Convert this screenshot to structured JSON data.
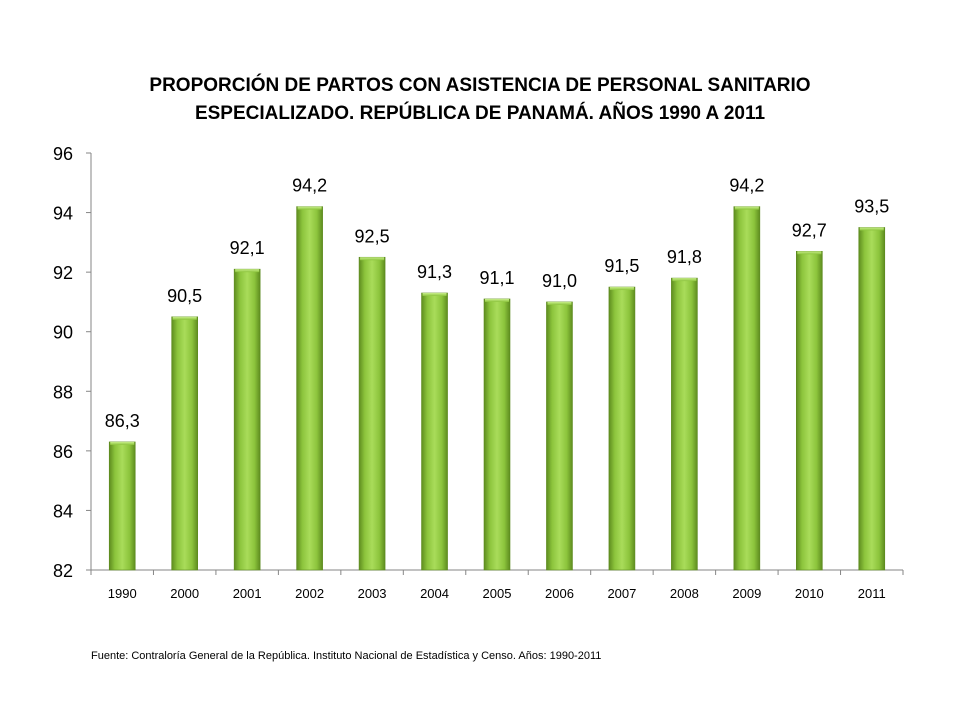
{
  "chart_data": {
    "type": "bar",
    "title_lines": [
      "PROPORCIÓN DE PARTOS CON ASISTENCIA DE PERSONAL SANITARIO",
      "ESPECIALIZADO. REPÚBLICA DE PANAMÁ.  AÑOS 1990 A 2011"
    ],
    "categories": [
      "1990",
      "2000",
      "2001",
      "2002",
      "2003",
      "2004",
      "2005",
      "2006",
      "2007",
      "2008",
      "2009",
      "2010",
      "2011"
    ],
    "values": [
      86.3,
      90.5,
      92.1,
      94.2,
      92.5,
      91.3,
      91.1,
      91.0,
      91.5,
      91.8,
      94.2,
      92.7,
      93.5
    ],
    "data_labels": [
      "86,3",
      "90,5",
      "92,1",
      "94,2",
      "92,5",
      "91,3",
      "91,1",
      "91,0",
      "91,5",
      "91,8",
      "94,2",
      "92,7",
      "93,5"
    ],
    "y_ticks": [
      "82",
      "84",
      "86",
      "88",
      "90",
      "92",
      "94",
      "96"
    ],
    "ylim": [
      82,
      96
    ],
    "xlabel": "",
    "ylabel": "",
    "grid": false,
    "legend": "none",
    "bar_color": "#8dc63f",
    "bar_edge_color": "#5c8a1e"
  },
  "source_note": "Fuente: Contraloría General de la República.  Instituto Nacional de Estadística y Censo.  Años: 1990-2011"
}
